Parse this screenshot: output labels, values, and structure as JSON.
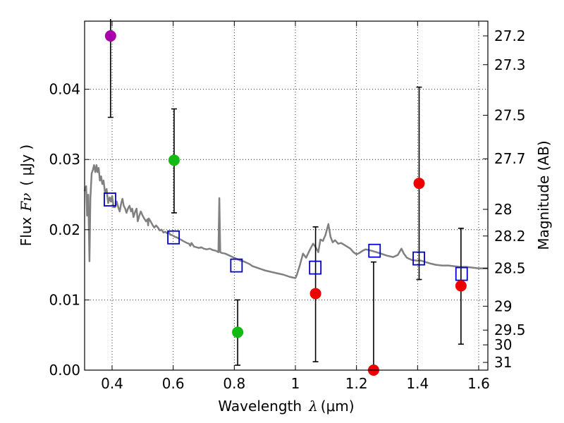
{
  "chart_data": {
    "type": "scatter",
    "xlabel": "Wavelength  λ (μm)",
    "xlabel_prefix": "Wavelength",
    "xlabel_symbol": "λ",
    "xlabel_unit": "(μm)",
    "ylabel_prefix": "Flux",
    "ylabel_symbol": "Fν",
    "ylabel_unit": "( μJy )",
    "ylabel_right": "Magnitude (AB)",
    "xlim": [
      0.31,
      1.63
    ],
    "ylim": [
      0.0,
      0.0497
    ],
    "grid": true,
    "x_ticks": [
      0.4,
      0.6,
      0.8,
      1.0,
      1.2,
      1.4,
      1.6
    ],
    "x_tick_labels": [
      "0.4",
      "0.6",
      "0.8",
      "1",
      "1.2",
      "1.4",
      "1.6"
    ],
    "y_ticks": [
      0.0,
      0.01,
      0.02,
      0.03,
      0.04
    ],
    "y_tick_labels": [
      "0.00",
      "0.01",
      "0.02",
      "0.03",
      "0.04"
    ],
    "right_ticks": [
      {
        "flux": 0.0476,
        "label": "27.2"
      },
      {
        "flux": 0.0435,
        "label": "27.3"
      },
      {
        "flux": 0.0363,
        "label": "27.5"
      },
      {
        "flux": 0.0301,
        "label": "27.7"
      },
      {
        "flux": 0.0229,
        "label": "28"
      },
      {
        "flux": 0.0191,
        "label": "28.2"
      },
      {
        "flux": 0.0145,
        "label": "28.5"
      },
      {
        "flux": 0.0091,
        "label": "29"
      },
      {
        "flux": 0.0057,
        "label": "29.5"
      },
      {
        "flux": 0.0036,
        "label": "30"
      },
      {
        "flux": 0.0011,
        "label": "31"
      }
    ],
    "observed": [
      {
        "x": 0.395,
        "y": 0.0476,
        "yerr_low": 0.036,
        "yerr_high": 0.05,
        "color": "#aa00aa"
      },
      {
        "x": 0.603,
        "y": 0.0299,
        "yerr_low": 0.0224,
        "yerr_high": 0.0372,
        "color": "#11bb11"
      },
      {
        "x": 0.811,
        "y": 0.0054,
        "yerr_low": 0.0007,
        "yerr_high": 0.01,
        "color": "#11bb11"
      },
      {
        "x": 1.066,
        "y": 0.0109,
        "yerr_low": 0.0012,
        "yerr_high": 0.0204,
        "color": "#ee0000"
      },
      {
        "x": 1.256,
        "y": 0.0,
        "yerr_low": 0.0,
        "yerr_high": 0.0154,
        "color": "#ee0000"
      },
      {
        "x": 1.405,
        "y": 0.0266,
        "yerr_low": 0.0129,
        "yerr_high": 0.0403,
        "color": "#ee0000"
      },
      {
        "x": 1.542,
        "y": 0.012,
        "yerr_low": 0.0037,
        "yerr_high": 0.0202,
        "color": "#ee0000"
      }
    ],
    "model_points": [
      {
        "x": 0.393,
        "y": 0.0243
      },
      {
        "x": 0.601,
        "y": 0.0189
      },
      {
        "x": 0.807,
        "y": 0.0149
      },
      {
        "x": 1.065,
        "y": 0.0146
      },
      {
        "x": 1.259,
        "y": 0.017
      },
      {
        "x": 1.404,
        "y": 0.0159
      },
      {
        "x": 1.544,
        "y": 0.0137
      }
    ],
    "model_point_color": "#0000cc",
    "sed_color": "#808080",
    "sed": [
      [
        0.31,
        0.0255
      ],
      [
        0.315,
        0.0262
      ],
      [
        0.318,
        0.022
      ],
      [
        0.322,
        0.025
      ],
      [
        0.326,
        0.0155
      ],
      [
        0.329,
        0.0245
      ],
      [
        0.333,
        0.028
      ],
      [
        0.337,
        0.0285
      ],
      [
        0.341,
        0.0292
      ],
      [
        0.345,
        0.0282
      ],
      [
        0.349,
        0.0292
      ],
      [
        0.352,
        0.0282
      ],
      [
        0.356,
        0.0288
      ],
      [
        0.36,
        0.027
      ],
      [
        0.364,
        0.0276
      ],
      [
        0.368,
        0.0265
      ],
      [
        0.372,
        0.027
      ],
      [
        0.377,
        0.0252
      ],
      [
        0.382,
        0.0258
      ],
      [
        0.387,
        0.0238
      ],
      [
        0.392,
        0.0246
      ],
      [
        0.396,
        0.024
      ],
      [
        0.4,
        0.0248
      ],
      [
        0.405,
        0.0232
      ],
      [
        0.41,
        0.0232
      ],
      [
        0.415,
        0.024
      ],
      [
        0.42,
        0.0232
      ],
      [
        0.425,
        0.0226
      ],
      [
        0.43,
        0.0238
      ],
      [
        0.434,
        0.0244
      ],
      [
        0.438,
        0.0234
      ],
      [
        0.443,
        0.023
      ],
      [
        0.447,
        0.0224
      ],
      [
        0.452,
        0.023
      ],
      [
        0.457,
        0.0234
      ],
      [
        0.462,
        0.0226
      ],
      [
        0.466,
        0.023
      ],
      [
        0.47,
        0.0218
      ],
      [
        0.476,
        0.0226
      ],
      [
        0.48,
        0.023
      ],
      [
        0.484,
        0.0212
      ],
      [
        0.489,
        0.022
      ],
      [
        0.494,
        0.0226
      ],
      [
        0.5,
        0.022
      ],
      [
        0.505,
        0.0216
      ],
      [
        0.511,
        0.0212
      ],
      [
        0.516,
        0.0215
      ],
      [
        0.518,
        0.0206
      ],
      [
        0.52,
        0.0216
      ],
      [
        0.526,
        0.0212
      ],
      [
        0.532,
        0.0207
      ],
      [
        0.538,
        0.0203
      ],
      [
        0.544,
        0.0206
      ],
      [
        0.55,
        0.0203
      ],
      [
        0.556,
        0.0199
      ],
      [
        0.562,
        0.02
      ],
      [
        0.568,
        0.0196
      ],
      [
        0.574,
        0.0197
      ],
      [
        0.58,
        0.0195
      ],
      [
        0.586,
        0.0196
      ],
      [
        0.59,
        0.0193
      ],
      [
        0.598,
        0.0192
      ],
      [
        0.605,
        0.019
      ],
      [
        0.612,
        0.0189
      ],
      [
        0.62,
        0.0187
      ],
      [
        0.628,
        0.0185
      ],
      [
        0.636,
        0.0183
      ],
      [
        0.645,
        0.0181
      ],
      [
        0.652,
        0.018
      ],
      [
        0.656,
        0.0177
      ],
      [
        0.66,
        0.0181
      ],
      [
        0.668,
        0.0176
      ],
      [
        0.676,
        0.0175
      ],
      [
        0.684,
        0.0174
      ],
      [
        0.692,
        0.0175
      ],
      [
        0.7,
        0.0173
      ],
      [
        0.71,
        0.0172
      ],
      [
        0.72,
        0.0173
      ],
      [
        0.73,
        0.0171
      ],
      [
        0.74,
        0.017
      ],
      [
        0.748,
        0.0168
      ],
      [
        0.751,
        0.0245
      ],
      [
        0.754,
        0.0168
      ],
      [
        0.758,
        0.0167
      ],
      [
        0.77,
        0.0166
      ],
      [
        0.78,
        0.0164
      ],
      [
        0.79,
        0.0162
      ],
      [
        0.8,
        0.016
      ],
      [
        0.81,
        0.0158
      ],
      [
        0.82,
        0.0156
      ],
      [
        0.83,
        0.0155
      ],
      [
        0.84,
        0.0153
      ],
      [
        0.85,
        0.0151
      ],
      [
        0.86,
        0.0148
      ],
      [
        0.88,
        0.0145
      ],
      [
        0.9,
        0.0142
      ],
      [
        0.92,
        0.014
      ],
      [
        0.94,
        0.0138
      ],
      [
        0.96,
        0.0136
      ],
      [
        0.98,
        0.0133
      ],
      [
        1.0,
        0.0131
      ],
      [
        1.005,
        0.0136
      ],
      [
        1.015,
        0.015
      ],
      [
        1.025,
        0.0166
      ],
      [
        1.035,
        0.016
      ],
      [
        1.048,
        0.0172
      ],
      [
        1.058,
        0.018
      ],
      [
        1.065,
        0.0176
      ],
      [
        1.075,
        0.0168
      ],
      [
        1.082,
        0.0186
      ],
      [
        1.09,
        0.0184
      ],
      [
        1.098,
        0.0192
      ],
      [
        1.108,
        0.0208
      ],
      [
        1.115,
        0.019
      ],
      [
        1.122,
        0.0182
      ],
      [
        1.13,
        0.0185
      ],
      [
        1.14,
        0.018
      ],
      [
        1.15,
        0.0181
      ],
      [
        1.165,
        0.0177
      ],
      [
        1.18,
        0.0173
      ],
      [
        1.19,
        0.0168
      ],
      [
        1.2,
        0.0165
      ],
      [
        1.21,
        0.0167
      ],
      [
        1.22,
        0.017
      ],
      [
        1.23,
        0.0172
      ],
      [
        1.24,
        0.0171
      ],
      [
        1.25,
        0.017
      ],
      [
        1.265,
        0.0168
      ],
      [
        1.28,
        0.0166
      ],
      [
        1.3,
        0.0163
      ],
      [
        1.32,
        0.0161
      ],
      [
        1.335,
        0.0164
      ],
      [
        1.347,
        0.0173
      ],
      [
        1.355,
        0.0166
      ],
      [
        1.365,
        0.016
      ],
      [
        1.38,
        0.0157
      ],
      [
        1.395,
        0.0156
      ],
      [
        1.41,
        0.0156
      ],
      [
        1.425,
        0.0154
      ],
      [
        1.44,
        0.0152
      ],
      [
        1.46,
        0.015
      ],
      [
        1.48,
        0.0149
      ],
      [
        1.5,
        0.0149
      ],
      [
        1.52,
        0.0148
      ],
      [
        1.54,
        0.0147
      ],
      [
        1.56,
        0.0147
      ],
      [
        1.58,
        0.0146
      ],
      [
        1.6,
        0.0145
      ],
      [
        1.63,
        0.0145
      ]
    ]
  }
}
